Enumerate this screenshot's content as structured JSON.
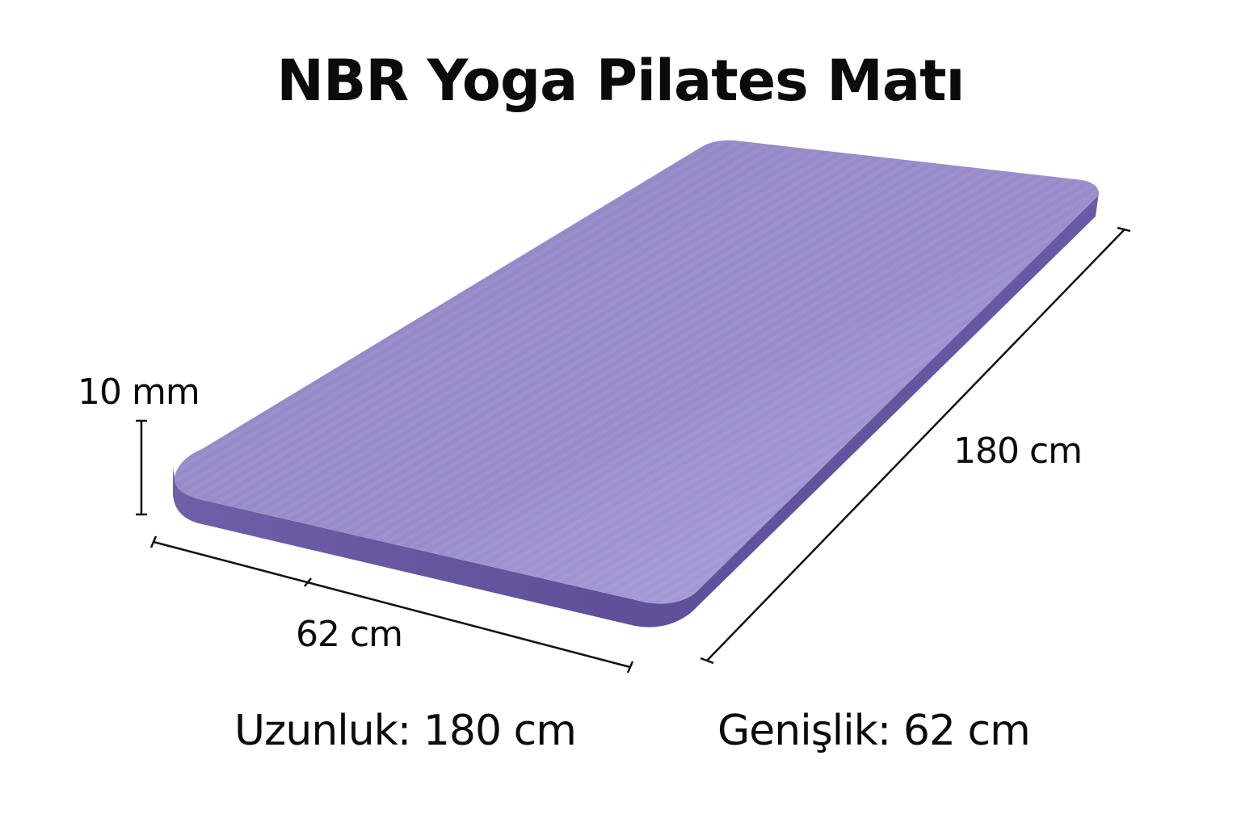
{
  "title": "NBR Yoga Pilates Matı",
  "dimensions": {
    "thickness_label": "10 mm",
    "length_label": "180 cm",
    "width_label": "62 cm"
  },
  "specs": {
    "length": "Uzunluk: 180 cm",
    "width": "Genişlik: 62 cm"
  },
  "colors": {
    "mat_top": "#9a8ac6",
    "mat_top_highlight": "#a99cd4",
    "mat_edge": "#62529a",
    "text": "#0b0b0b",
    "background": "#ffffff"
  }
}
